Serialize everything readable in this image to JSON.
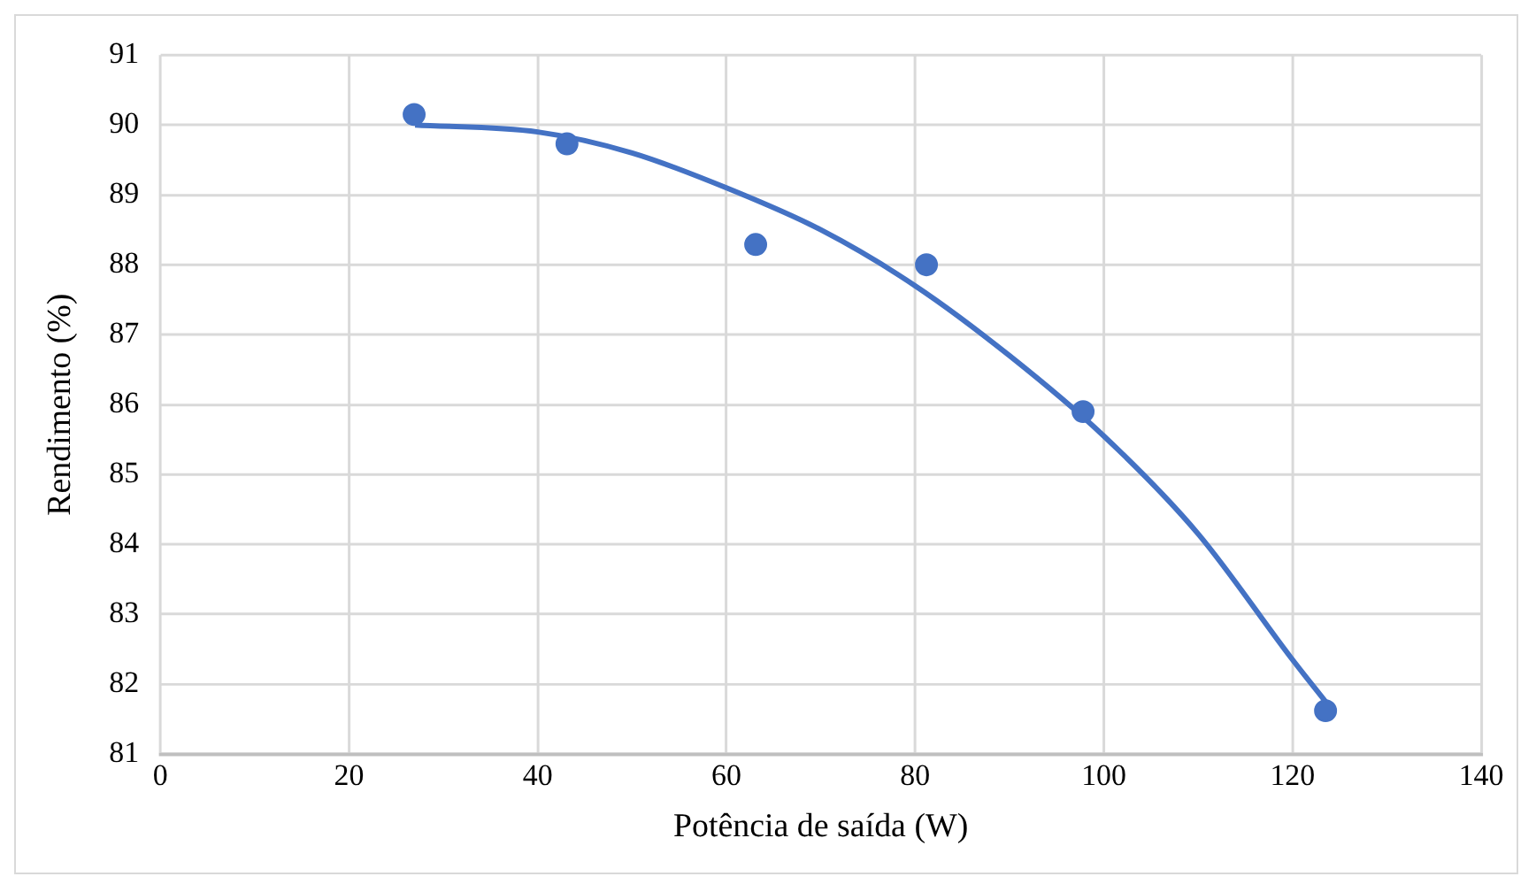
{
  "chart_data": {
    "type": "scatter",
    "xlabel": "Potência de saída (W)",
    "ylabel": "Rendimento (%)",
    "xlim": [
      0,
      140
    ],
    "xticks": [
      0,
      20,
      40,
      60,
      80,
      100,
      120,
      140
    ],
    "ylim": [
      81,
      91
    ],
    "yticks": [
      81,
      82,
      83,
      84,
      85,
      86,
      87,
      88,
      89,
      90,
      91
    ],
    "grid": true,
    "legend": false,
    "marker": "circle",
    "series": [
      {
        "color": "#4472c4",
        "x": [
          26.9,
          43.1,
          63.1,
          81.2,
          97.8,
          123.5
        ],
        "values": [
          90.15,
          89.73,
          88.29,
          88.0,
          85.9,
          81.62
        ]
      },
      {
        "type": "line",
        "color": "#4472c4",
        "marker": "none",
        "line_style": "solid",
        "x": [
          27,
          40,
          50,
          60,
          70,
          80,
          90,
          100,
          110,
          120,
          123.5
        ],
        "values": [
          90.0,
          89.9,
          89.6,
          89.1,
          88.5,
          87.7,
          86.7,
          85.55,
          84.15,
          82.35,
          81.75
        ]
      }
    ]
  }
}
